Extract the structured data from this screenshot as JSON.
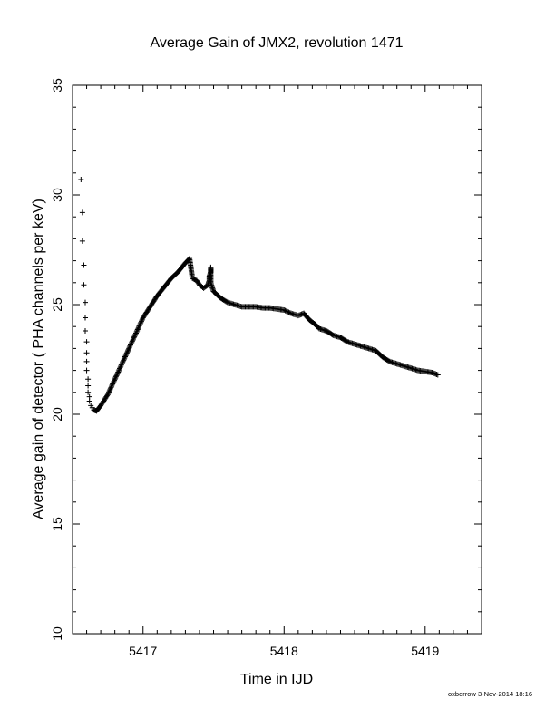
{
  "chart_data": {
    "type": "scatter",
    "title": "Average Gain of JMX2, revolution 1471",
    "xlabel": "Time in IJD",
    "ylabel": "Average gain of detector ( PHA channels per keV)",
    "xlim": [
      5416.5,
      5419.4
    ],
    "ylim": [
      10,
      35
    ],
    "x_ticks": [
      5417,
      5418,
      5419
    ],
    "x_tick_labels": [
      "5417",
      "5418",
      "5419"
    ],
    "y_ticks": [
      10,
      15,
      20,
      25,
      30,
      35
    ],
    "y_tick_labels": [
      "10",
      "15",
      "20",
      "25",
      "30",
      "35"
    ],
    "marker": "plus",
    "grid": false,
    "series": [
      {
        "x": [
          5416.56,
          5416.57,
          5416.57,
          5416.58,
          5416.58,
          5416.59,
          5416.59,
          5416.59,
          5416.6,
          5416.6,
          5416.6,
          5416.6,
          5416.61,
          5416.61,
          5416.61,
          5416.62,
          5416.62,
          5416.63,
          5416.64,
          5416.65,
          5416.67,
          5416.7,
          5416.75,
          5416.8,
          5416.85,
          5416.9,
          5416.95,
          5417.0,
          5417.05,
          5417.1,
          5417.15,
          5417.2,
          5417.25,
          5417.3,
          5417.33,
          5417.35,
          5417.38,
          5417.4,
          5417.43,
          5417.46,
          5417.47,
          5417.47,
          5417.48,
          5417.48,
          5417.48,
          5417.5,
          5417.55,
          5417.6,
          5417.65,
          5417.7,
          5417.75,
          5417.8,
          5417.85,
          5417.9,
          5417.95,
          5418.0,
          5418.05,
          5418.1,
          5418.14,
          5418.18,
          5418.22,
          5418.25,
          5418.3,
          5418.35,
          5418.4,
          5418.45,
          5418.5,
          5418.55,
          5418.6,
          5418.65,
          5418.7,
          5418.75,
          5418.8,
          5418.85,
          5418.9,
          5418.95,
          5419.0,
          5419.05,
          5419.09
        ],
        "y": [
          30.7,
          29.2,
          27.9,
          26.8,
          25.9,
          25.1,
          24.4,
          23.8,
          23.3,
          22.8,
          22.4,
          22.0,
          21.6,
          21.3,
          21.0,
          20.8,
          20.6,
          20.4,
          20.3,
          20.2,
          20.15,
          20.4,
          20.9,
          21.6,
          22.3,
          23.0,
          23.7,
          24.4,
          24.9,
          25.4,
          25.8,
          26.2,
          26.5,
          26.9,
          27.1,
          26.2,
          26.1,
          25.9,
          25.75,
          25.9,
          26.1,
          26.3,
          26.5,
          26.7,
          26.0,
          25.6,
          25.3,
          25.1,
          25.0,
          24.9,
          24.9,
          24.9,
          24.85,
          24.85,
          24.8,
          24.75,
          24.6,
          24.5,
          24.6,
          24.3,
          24.1,
          23.9,
          23.8,
          23.6,
          23.5,
          23.3,
          23.2,
          23.1,
          23.0,
          22.9,
          22.6,
          22.4,
          22.3,
          22.2,
          22.1,
          22.0,
          21.95,
          21.9,
          21.8
        ]
      }
    ]
  },
  "footer": "oxborrow  3-Nov-2014 18:16"
}
